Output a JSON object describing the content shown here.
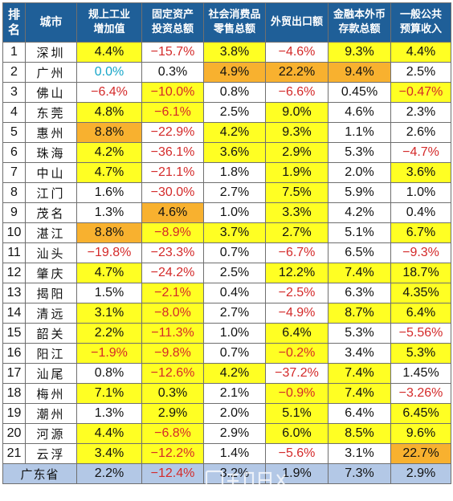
{
  "table": {
    "headers": [
      {
        "lines": [
          "排",
          "名"
        ]
      },
      {
        "lines": [
          "城市"
        ]
      },
      {
        "lines": [
          "规上工业",
          "增加值"
        ]
      },
      {
        "lines": [
          "固定资产",
          "投资总额"
        ]
      },
      {
        "lines": [
          "社会消费品",
          "零售总额"
        ]
      },
      {
        "lines": [
          "外贸出口额"
        ]
      },
      {
        "lines": [
          "金融本外币",
          "存款总额"
        ]
      },
      {
        "lines": [
          "一般公共",
          "预算收入"
        ]
      }
    ],
    "rows": [
      {
        "rank": "1",
        "city": "深圳",
        "values": [
          "4.4%",
          "−15.7%",
          "3.8%",
          "−4.6%",
          "9.3%",
          "4.4%"
        ],
        "hl": [
          "y",
          "",
          "y",
          "",
          "y",
          "y"
        ]
      },
      {
        "rank": "2",
        "city": "广州",
        "values": [
          "0.0%",
          "0.3%",
          "4.9%",
          "22.2%",
          "9.4%",
          "2.5%"
        ],
        "hl": [
          "",
          "",
          "o",
          "o",
          "o",
          ""
        ]
      },
      {
        "rank": "3",
        "city": "佛山",
        "values": [
          "−6.4%",
          "−10.0%",
          "0.8%",
          "−6.6%",
          "0.45%",
          "−0.47%"
        ],
        "hl": [
          "",
          "y",
          "",
          "",
          "",
          "y"
        ]
      },
      {
        "rank": "4",
        "city": "东莞",
        "values": [
          "4.8%",
          "−6.1%",
          "2.5%",
          "9.0%",
          "4.6%",
          "2.3%"
        ],
        "hl": [
          "y",
          "y",
          "",
          "y",
          "",
          ""
        ]
      },
      {
        "rank": "5",
        "city": "惠州",
        "values": [
          "8.8%",
          "−22.9%",
          "4.2%",
          "9.3%",
          "1.1%",
          "2.6%"
        ],
        "hl": [
          "o",
          "",
          "y",
          "y",
          "",
          ""
        ]
      },
      {
        "rank": "6",
        "city": "珠海",
        "values": [
          "4.2%",
          "−36.1%",
          "3.6%",
          "2.9%",
          "5.3%",
          "−4.7%"
        ],
        "hl": [
          "y",
          "",
          "y",
          "y",
          "",
          ""
        ]
      },
      {
        "rank": "7",
        "city": "中山",
        "values": [
          "4.7%",
          "−21.1%",
          "1.8%",
          "1.9%",
          "2.0%",
          "3.6%"
        ],
        "hl": [
          "y",
          "",
          "",
          "y",
          "",
          "y"
        ]
      },
      {
        "rank": "8",
        "city": "江门",
        "values": [
          "1.6%",
          "−30.0%",
          "2.7%",
          "7.5%",
          "5.9%",
          "1.0%"
        ],
        "hl": [
          "",
          "",
          "",
          "y",
          "",
          ""
        ]
      },
      {
        "rank": "9",
        "city": "茂名",
        "values": [
          "1.3%",
          "4.6%",
          "1.0%",
          "3.3%",
          "4.2%",
          "0.4%"
        ],
        "hl": [
          "",
          "o",
          "",
          "y",
          "",
          ""
        ]
      },
      {
        "rank": "10",
        "city": "湛江",
        "values": [
          "8.8%",
          "−8.9%",
          "3.7%",
          "2.7%",
          "5.1%",
          "6.7%"
        ],
        "hl": [
          "o",
          "y",
          "y",
          "y",
          "",
          "y"
        ]
      },
      {
        "rank": "11",
        "city": "汕头",
        "values": [
          "−19.8%",
          "−23.3%",
          "0.7%",
          "−6.7%",
          "6.5%",
          "−9.3%"
        ],
        "hl": [
          "",
          "",
          "",
          "",
          "",
          ""
        ]
      },
      {
        "rank": "12",
        "city": "肇庆",
        "values": [
          "4.7%",
          "−24.2%",
          "2.5%",
          "12.2%",
          "7.4%",
          "18.7%"
        ],
        "hl": [
          "y",
          "",
          "",
          "y",
          "y",
          "y"
        ]
      },
      {
        "rank": "13",
        "city": "揭阳",
        "values": [
          "1.5%",
          "−2.1%",
          "0.4%",
          "−2.5%",
          "6.3%",
          "4.35%"
        ],
        "hl": [
          "",
          "y",
          "",
          "",
          "",
          "y"
        ]
      },
      {
        "rank": "14",
        "city": "清远",
        "values": [
          "3.1%",
          "−8.0%",
          "2.7%",
          "−4.9%",
          "8.7%",
          "6.4%"
        ],
        "hl": [
          "y",
          "y",
          "",
          "",
          "y",
          "y"
        ]
      },
      {
        "rank": "15",
        "city": "韶关",
        "values": [
          "2.2%",
          "−11.3%",
          "1.0%",
          "6.4%",
          "5.3%",
          "−5.56%"
        ],
        "hl": [
          "y",
          "y",
          "",
          "y",
          "",
          ""
        ]
      },
      {
        "rank": "16",
        "city": "阳江",
        "values": [
          "−1.9%",
          "−9.8%",
          "0.7%",
          "−0.2%",
          "3.4%",
          "5.3%"
        ],
        "hl": [
          "y",
          "y",
          "",
          "y",
          "",
          "y"
        ]
      },
      {
        "rank": "17",
        "city": "汕尾",
        "values": [
          "0.8%",
          "−12.6%",
          "4.2%",
          "−37.2%",
          "7.4%",
          "1.45%"
        ],
        "hl": [
          "",
          "y",
          "y",
          "",
          "y",
          ""
        ]
      },
      {
        "rank": "18",
        "city": "梅州",
        "values": [
          "7.1%",
          "0.3%",
          "2.1%",
          "−0.9%",
          "7.4%",
          "−3.26%"
        ],
        "hl": [
          "y",
          "y",
          "",
          "y",
          "y",
          ""
        ]
      },
      {
        "rank": "19",
        "city": "潮州",
        "values": [
          "1.3%",
          "2.9%",
          "2.0%",
          "5.1%",
          "6.4%",
          "6.45%"
        ],
        "hl": [
          "",
          "y",
          "",
          "y",
          "",
          "y"
        ]
      },
      {
        "rank": "20",
        "city": "河源",
        "values": [
          "4.4%",
          "−6.8%",
          "2.9%",
          "6.0%",
          "8.5%",
          "9.6%"
        ],
        "hl": [
          "y",
          "y",
          "",
          "y",
          "y",
          "y"
        ]
      },
      {
        "rank": "21",
        "city": "云浮",
        "values": [
          "3.4%",
          "−12.2%",
          "1.4%",
          "−5.6%",
          "3.1%",
          "22.7%"
        ],
        "hl": [
          "y",
          "y",
          "",
          "",
          "",
          "o"
        ]
      }
    ],
    "total": {
      "city": "广东省",
      "values": [
        "2.2%",
        "−12.4%",
        "3.2%",
        "1.9%",
        "7.3%",
        "2.9%"
      ]
    }
  },
  "colors": {
    "header_bg": "#1f5f98",
    "highlight_yellow": "#ffff23",
    "highlight_orange": "#f8b12f",
    "negative_text": "#d42a2a",
    "total_row_bg": "#b3c8e6"
  },
  "watermark_icon": "watermark-icon"
}
